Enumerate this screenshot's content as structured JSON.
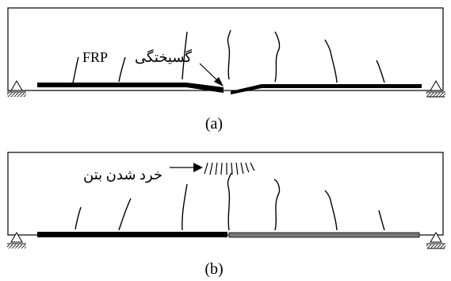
{
  "panel_a": {
    "caption": "(a)",
    "annotation": "گسیختگی FRP",
    "annotation_latin": "FRP",
    "annotation_farsi": "گسیختگی"
  },
  "panel_b": {
    "caption": "(b)",
    "annotation": "خرد شدن بتن"
  }
}
